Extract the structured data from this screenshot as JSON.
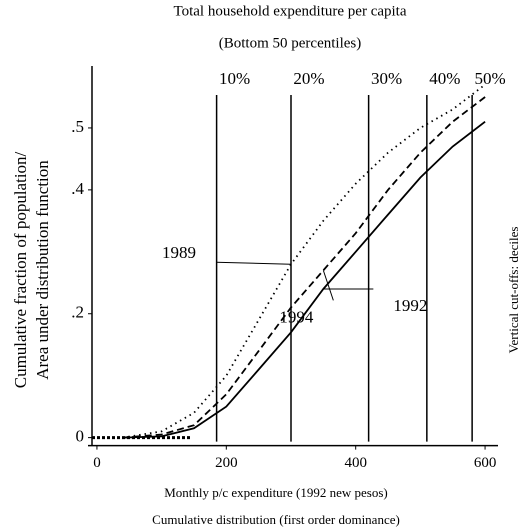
{
  "chart_data": {
    "type": "line",
    "title": "Total household expenditure per capita",
    "subtitle": "(Bottom 50 percentiles)",
    "x_label": "Monthly p/c expenditure (1992 new pesos)",
    "caption": "Cumulative distribution (first order dominance)",
    "y_label": [
      "Cumulative fraction of population/",
      "Area under distribution function"
    ],
    "right_label": "Vertical cut-offs: deciles",
    "x": [
      40,
      100,
      150,
      200,
      250,
      300,
      350,
      400,
      450,
      500,
      550,
      600
    ],
    "series": [
      {
        "name": "1989",
        "color": "#000000",
        "style": "dotted",
        "values": [
          0,
          0.01,
          0.04,
          0.1,
          0.19,
          0.28,
          0.35,
          0.41,
          0.46,
          0.5,
          0.53,
          0.57
        ]
      },
      {
        "name": "1994",
        "color": "#000000",
        "style": "dashed",
        "values": [
          0,
          0.005,
          0.02,
          0.07,
          0.14,
          0.21,
          0.27,
          0.33,
          0.4,
          0.46,
          0.51,
          0.55
        ]
      },
      {
        "name": "1992",
        "color": "#000000",
        "style": "solid",
        "values": [
          0,
          0.002,
          0.015,
          0.05,
          0.11,
          0.17,
          0.24,
          0.3,
          0.36,
          0.42,
          0.47,
          0.51
        ]
      }
    ],
    "deciles": {
      "labels": [
        "10%",
        "20%",
        "30%",
        "40%",
        "50%"
      ],
      "values": [
        185,
        300,
        420,
        510,
        580
      ]
    },
    "xlim": [
      -20,
      620
    ],
    "xticks": [
      0,
      200,
      400,
      600
    ],
    "ylim": [
      -0.02,
      0.6
    ],
    "yticks": [
      {
        "value": 0,
        "label": "0"
      },
      {
        "value": 0.2,
        "label": ".2"
      },
      {
        "value": 0.4,
        "label": ".4"
      },
      {
        "value": 0.5,
        "label": ".5"
      }
    ]
  }
}
